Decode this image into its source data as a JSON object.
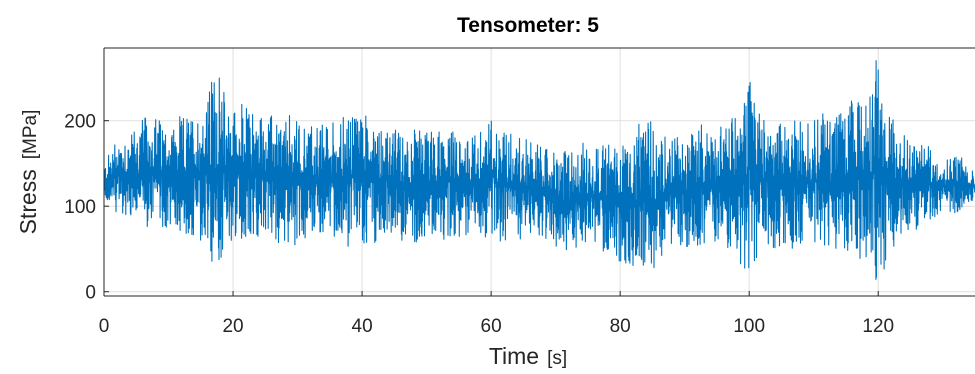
{
  "chart_data": {
    "type": "line",
    "title": "Tensometer: 5",
    "xlabel": "Time",
    "xunit": "[s]",
    "ylabel": "Stress",
    "yunit": "[MPa]",
    "xlim": [
      0,
      135
    ],
    "ylim": [
      -5,
      285
    ],
    "xticks": [
      0,
      20,
      40,
      60,
      80,
      100,
      120
    ],
    "yticks": [
      0,
      100,
      200
    ],
    "grid": true,
    "series": [
      {
        "color": "#0072BD",
        "x": [
          0,
          2,
          4,
          6,
          8,
          10,
          12,
          14,
          16,
          17,
          18,
          20,
          22,
          24,
          26,
          28,
          30,
          32,
          34,
          36,
          38,
          40,
          42,
          44,
          46,
          48,
          50,
          52,
          54,
          56,
          58,
          60,
          62,
          64,
          66,
          68,
          70,
          72,
          74,
          76,
          78,
          80,
          82,
          84,
          85,
          86,
          88,
          90,
          92,
          94,
          96,
          98,
          99.5,
          100,
          102,
          104,
          106,
          108,
          110,
          112,
          114,
          116,
          118,
          119.5,
          120,
          122,
          124,
          126,
          128,
          130,
          132,
          134,
          135
        ],
        "min": [
          105,
          90,
          80,
          75,
          70,
          70,
          65,
          55,
          40,
          10,
          30,
          50,
          55,
          55,
          60,
          55,
          55,
          60,
          60,
          55,
          50,
          45,
          50,
          60,
          60,
          55,
          60,
          60,
          65,
          65,
          60,
          60,
          55,
          60,
          65,
          60,
          50,
          45,
          45,
          50,
          45,
          30,
          25,
          10,
          5,
          30,
          45,
          50,
          45,
          50,
          50,
          35,
          20,
          5,
          50,
          40,
          50,
          55,
          50,
          45,
          40,
          40,
          30,
          10,
          0,
          40,
          60,
          70,
          80,
          90,
          85,
          100,
          110
        ],
        "max": [
          150,
          185,
          190,
          205,
          210,
          200,
          205,
          215,
          230,
          270,
          250,
          225,
          220,
          215,
          210,
          205,
          210,
          200,
          200,
          205,
          210,
          225,
          210,
          195,
          190,
          195,
          195,
          190,
          190,
          185,
          190,
          205,
          200,
          185,
          180,
          175,
          165,
          170,
          175,
          175,
          180,
          185,
          190,
          200,
          205,
          190,
          185,
          190,
          200,
          195,
          200,
          210,
          245,
          270,
          215,
          210,
          200,
          205,
          210,
          215,
          215,
          225,
          235,
          275,
          285,
          215,
          190,
          180,
          170,
          160,
          165,
          150,
          140
        ]
      }
    ]
  }
}
